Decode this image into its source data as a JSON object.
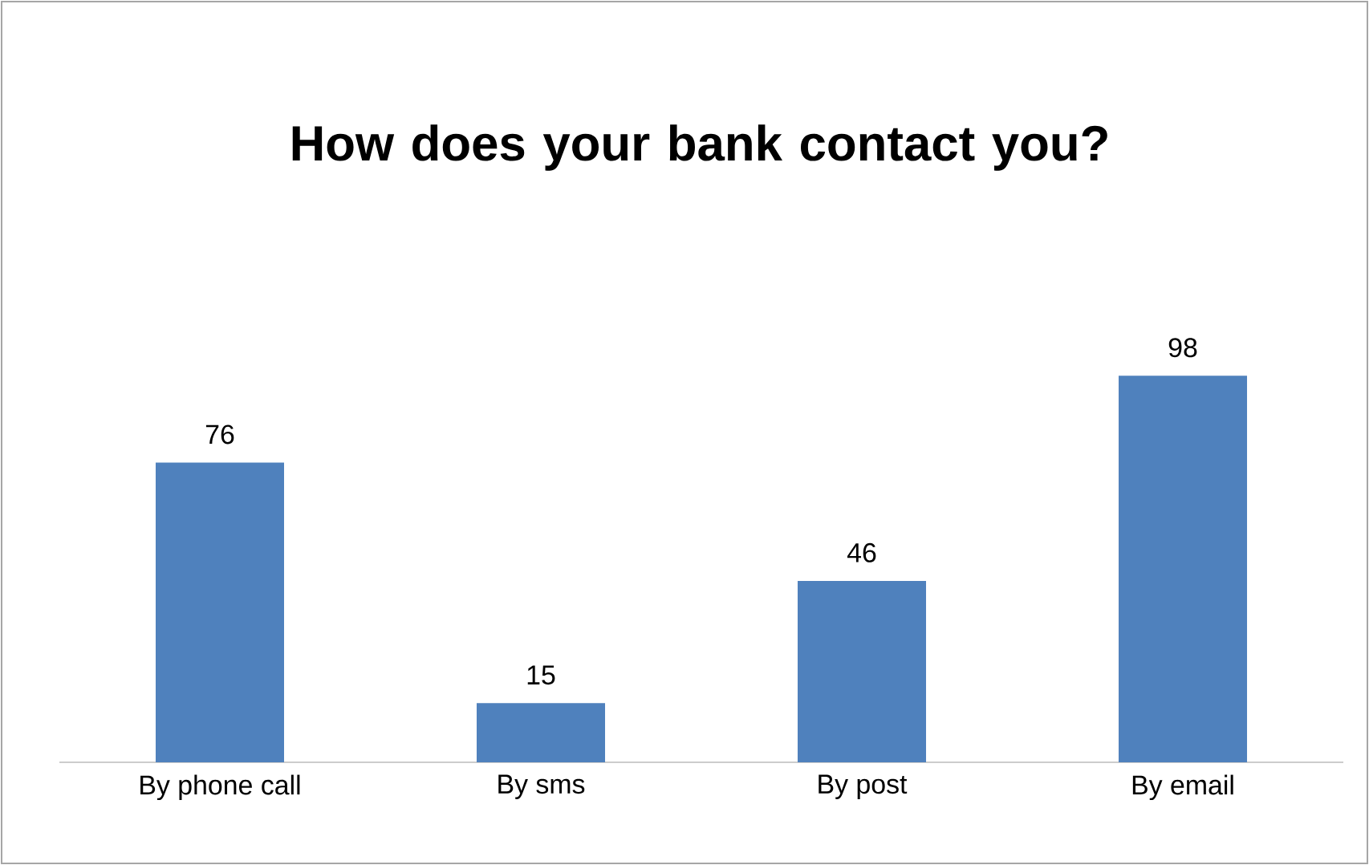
{
  "chart_data": {
    "type": "bar",
    "title": "How does your bank contact you?",
    "categories": [
      "By phone call",
      "By sms",
      "By post",
      "By email"
    ],
    "values": [
      76,
      15,
      46,
      98
    ],
    "color": "#4f81bd",
    "data_labels": true
  }
}
